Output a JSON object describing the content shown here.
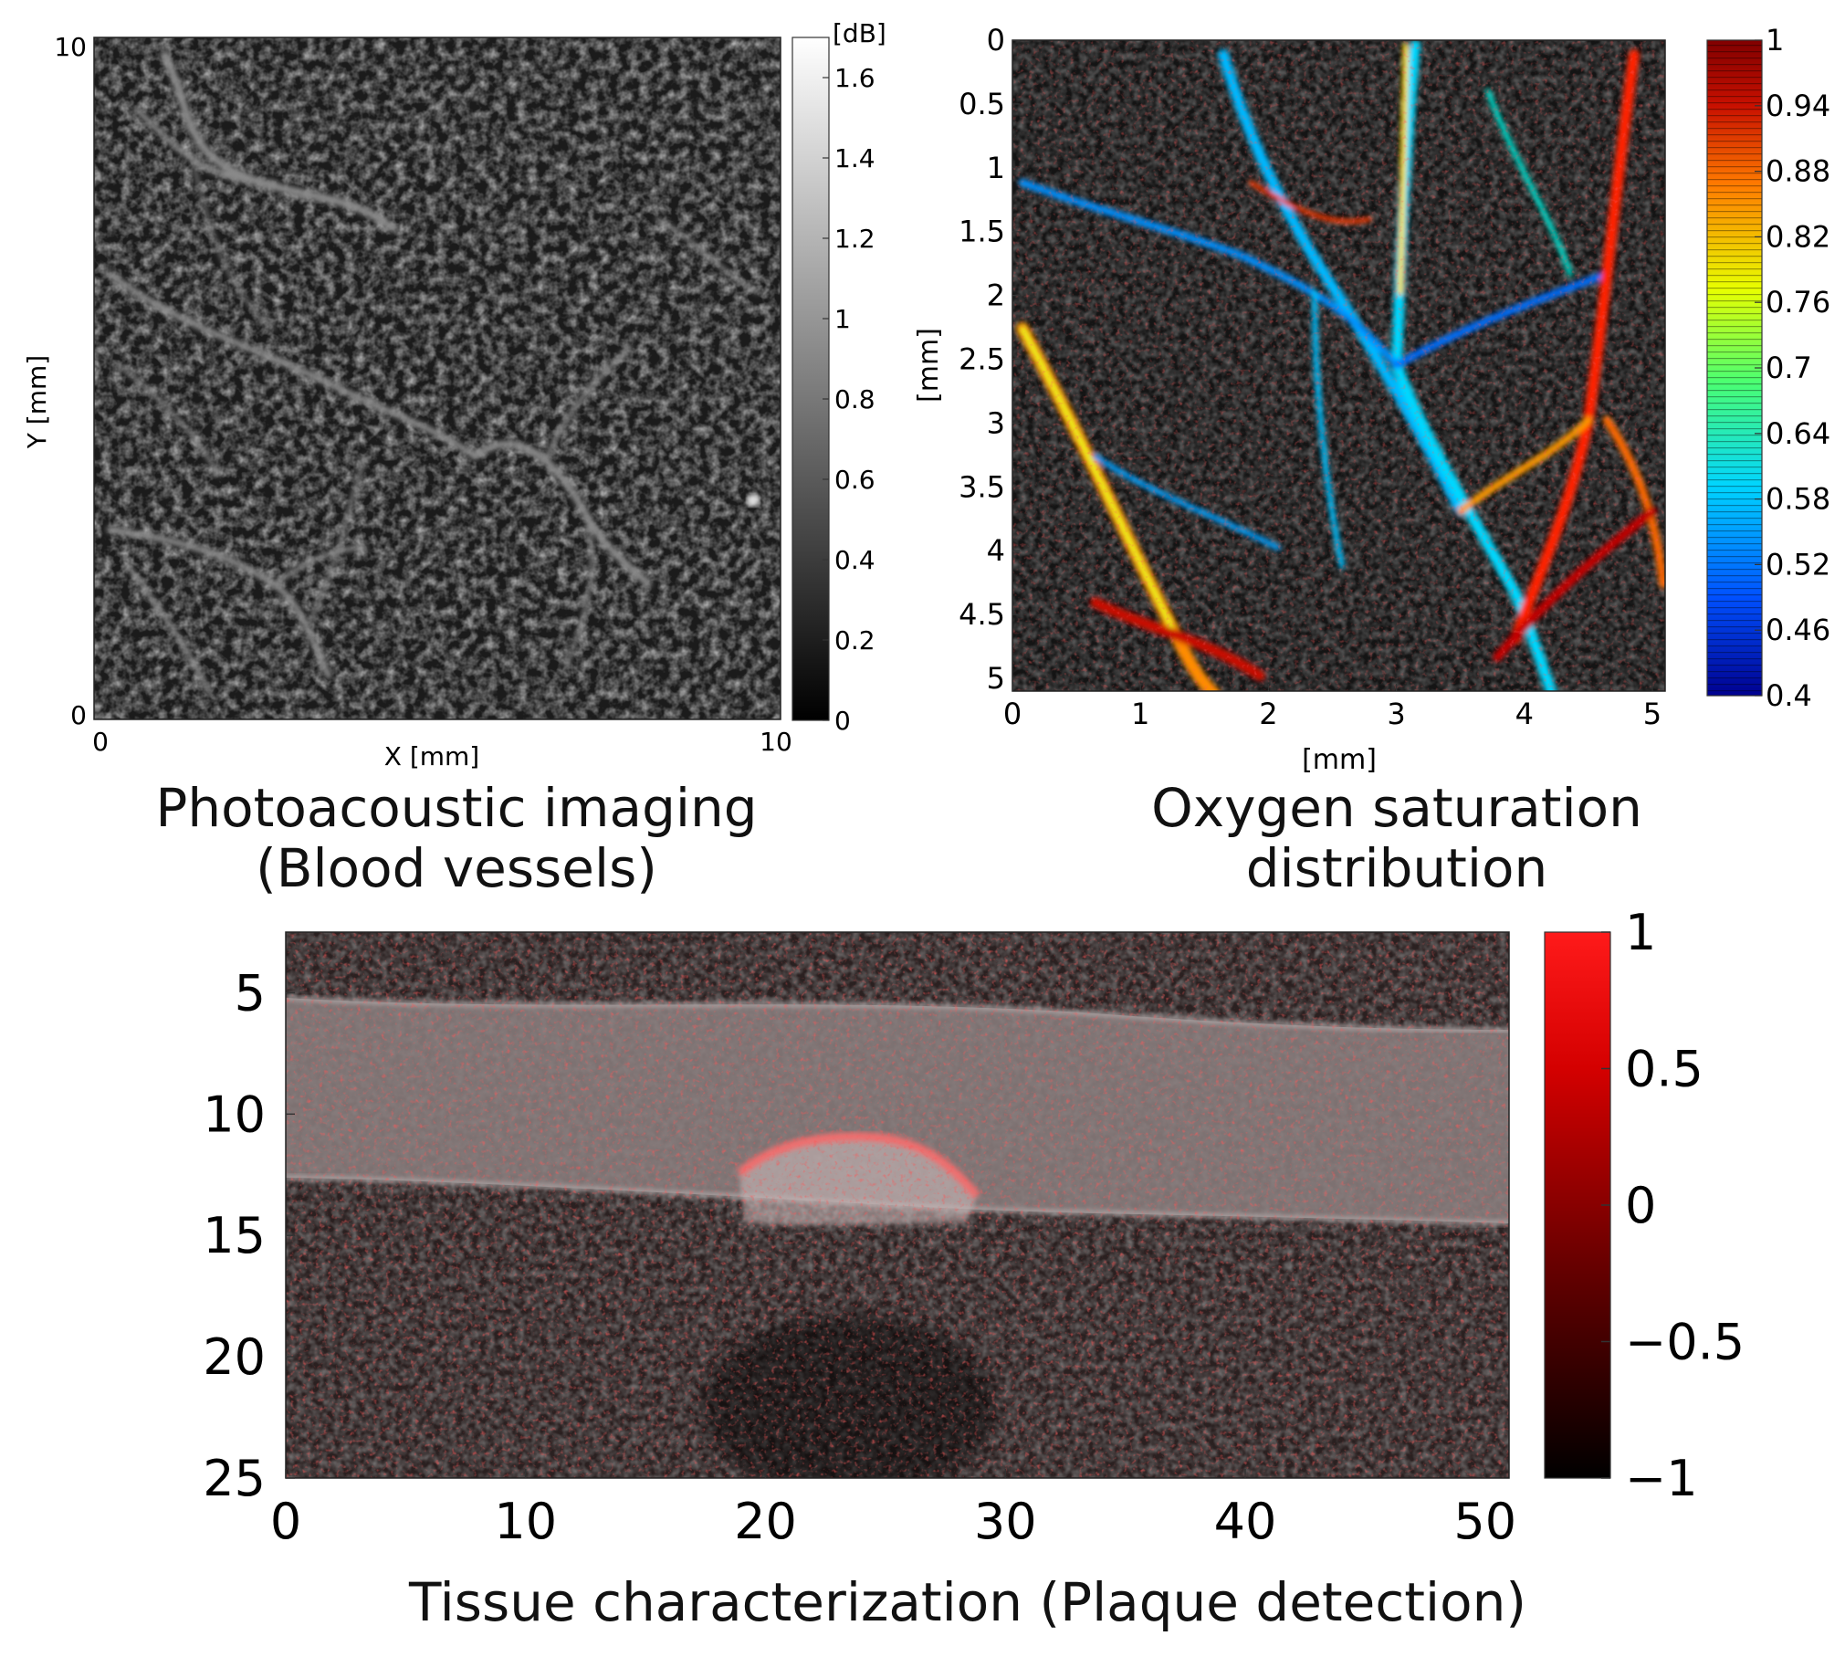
{
  "charts": {
    "photoacoustic": {
      "caption_line1": "Photoacoustic imaging",
      "caption_line2": "(Blood vessels)",
      "xlabel": "X [mm]",
      "ylabel": "Y [mm]",
      "colorbar_unit": "[dB]",
      "colorbar_colors": [
        "#000000",
        "#ffffff"
      ]
    },
    "oxygen": {
      "caption_line1": "Oxygen saturation",
      "caption_line2": "distribution",
      "xlabel": "[mm]",
      "ylabel": "[mm]",
      "colorbar_colors": [
        "#00008f",
        "#0050ff",
        "#00d5ff",
        "#4cff70",
        "#e8ff00",
        "#ff7a00",
        "#c81000",
        "#800000"
      ]
    },
    "tissue": {
      "caption": "Tissue characterization (Plaque detection)",
      "colorbar_colors": [
        "#000000",
        "#6a0000",
        "#d40000",
        "#ff1a1a"
      ]
    }
  },
  "chart_data": [
    {
      "type": "heatmap",
      "name": "photoacoustic",
      "xlabel": "X [mm]",
      "ylabel": "Y [mm]",
      "xlim": [
        0,
        10
      ],
      "ylim": [
        0,
        10
      ],
      "x_ticks": [
        "0",
        "10"
      ],
      "y_ticks": [
        "0",
        "10"
      ],
      "colorbar": {
        "unit": "[dB]",
        "range": [
          0,
          1.7
        ],
        "ticks": [
          "0",
          "0.2",
          "0.4",
          "0.6",
          "0.8",
          "1",
          "1.2",
          "1.4",
          "1.6"
        ]
      }
    },
    {
      "type": "heatmap",
      "name": "oxygen",
      "xlabel": "[mm]",
      "ylabel": "[mm]",
      "xlim": [
        0,
        5.1
      ],
      "ylim": [
        0,
        5.1
      ],
      "x_ticks": [
        "0",
        "1",
        "2",
        "3",
        "4",
        "5"
      ],
      "y_ticks": [
        "0",
        "0.5",
        "1",
        "1.5",
        "2",
        "2.5",
        "3",
        "3.5",
        "4",
        "4.5",
        "5"
      ],
      "colorbar": {
        "range": [
          0.4,
          1
        ],
        "ticks": [
          "1",
          "0.94",
          "0.88",
          "0.82",
          "0.76",
          "0.7",
          "0.64",
          "0.58",
          "0.52",
          "0.46",
          "0.4"
        ]
      }
    },
    {
      "type": "heatmap",
      "name": "tissue",
      "xlim": [
        0,
        51
      ],
      "ylim": [
        2.5,
        25
      ],
      "x_ticks": [
        "0",
        "10",
        "20",
        "30",
        "40",
        "50"
      ],
      "y_ticks": [
        "5",
        "10",
        "15",
        "20",
        "25"
      ],
      "colorbar": {
        "range": [
          -1,
          1
        ],
        "ticks": [
          "1",
          "0.5",
          "0",
          "−0.5",
          "−1"
        ]
      }
    }
  ]
}
